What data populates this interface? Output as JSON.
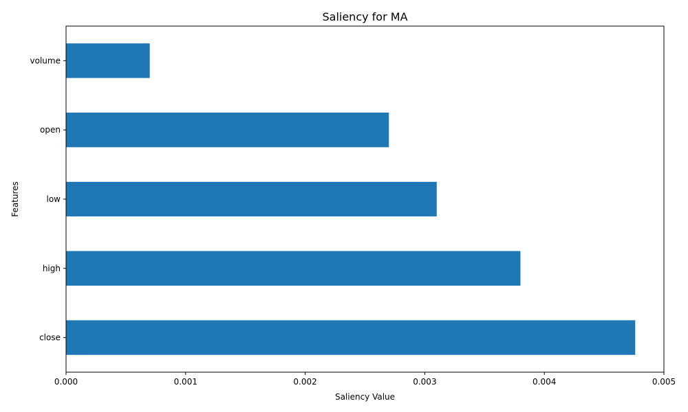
{
  "chart_data": {
    "type": "bar",
    "orientation": "horizontal",
    "title": "Saliency for MA",
    "xlabel": "Saliency Value",
    "ylabel": "Features",
    "categories": [
      "close",
      "high",
      "low",
      "open",
      "volume"
    ],
    "values": [
      0.00476,
      0.0038,
      0.0031,
      0.0027,
      0.0007
    ],
    "xlim": [
      0,
      0.005
    ],
    "xticks": [
      0,
      0.001,
      0.002,
      0.003,
      0.004,
      0.005
    ],
    "xtick_labels": [
      "0.000",
      "0.001",
      "0.002",
      "0.003",
      "0.004",
      "0.005"
    ],
    "grid": false,
    "bar_color": "#1f77b4"
  }
}
